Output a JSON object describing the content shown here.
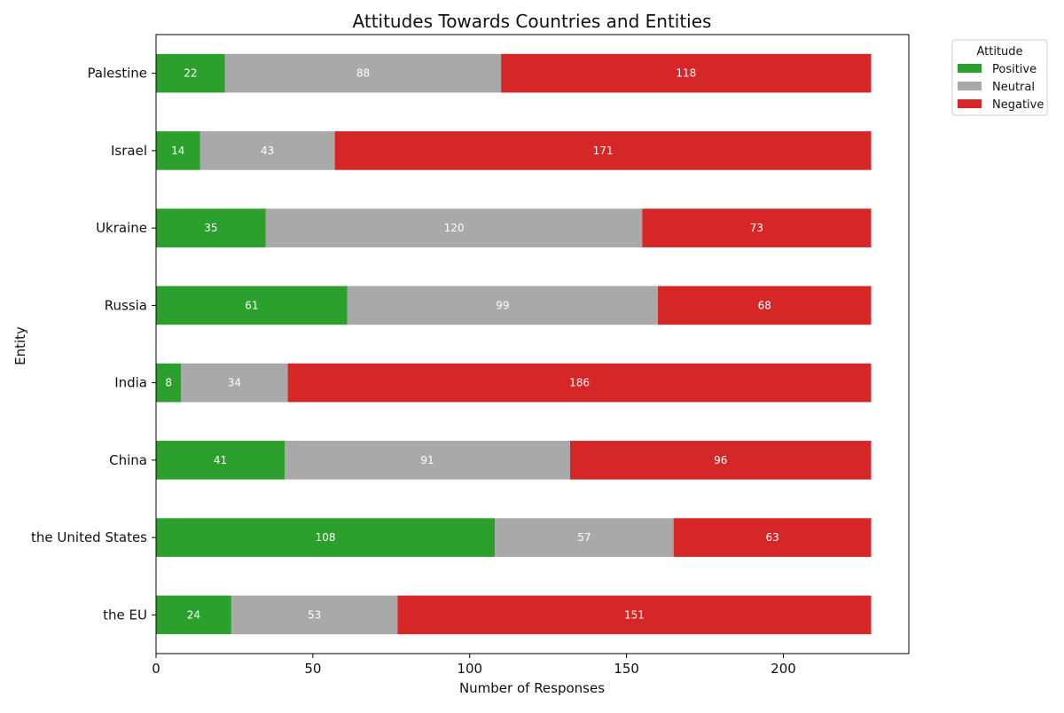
{
  "chart_data": {
    "type": "bar",
    "orientation": "horizontal",
    "stacked": true,
    "title": "Attitudes Towards Countries and Entities",
    "xlabel": "Number of Responses",
    "ylabel": "Entity",
    "xlim": [
      0,
      240
    ],
    "x_ticks": [
      0,
      50,
      100,
      150,
      200
    ],
    "grid": false,
    "categories": [
      "Palestine",
      "Israel",
      "Ukraine",
      "Russia",
      "India",
      "China",
      "the United States",
      "the EU"
    ],
    "series": [
      {
        "name": "Positive",
        "color": "#2ca02c",
        "values": [
          22,
          14,
          35,
          61,
          8,
          41,
          108,
          24
        ]
      },
      {
        "name": "Neutral",
        "color": "#a9a9a9",
        "values": [
          88,
          43,
          120,
          99,
          34,
          91,
          57,
          53
        ]
      },
      {
        "name": "Negative",
        "color": "#d62728",
        "values": [
          118,
          171,
          73,
          68,
          186,
          96,
          63,
          151
        ]
      }
    ],
    "legend": {
      "title": "Attitude",
      "placement": "outside-top-right"
    }
  }
}
